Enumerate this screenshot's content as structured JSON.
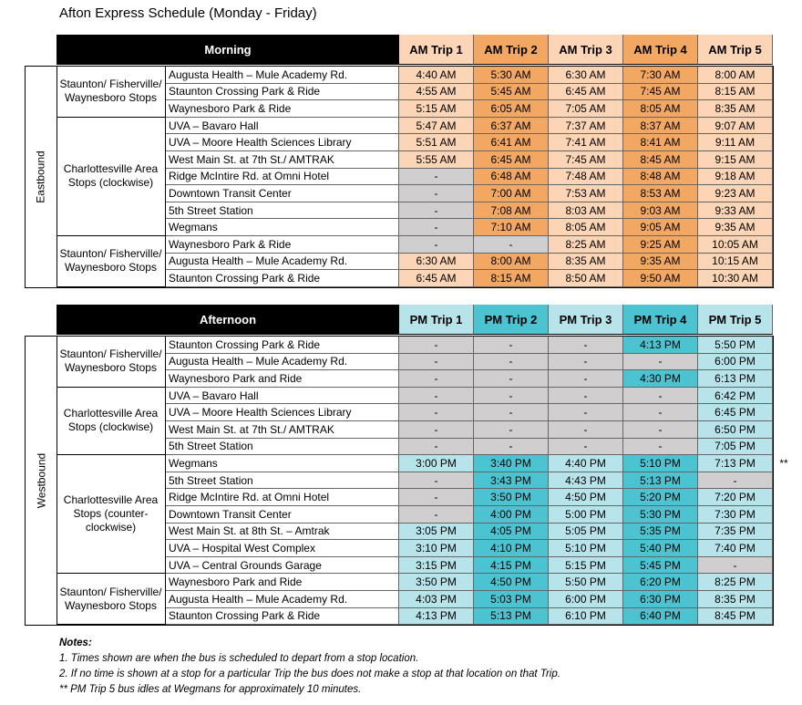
{
  "title": "Afton Express Schedule (Monday - Friday)",
  "sections": [
    {
      "header": "Morning",
      "direction": "Eastbound",
      "trips": [
        "AM Trip 1",
        "AM Trip 2",
        "AM Trip 3",
        "AM Trip 4",
        "AM Trip 5"
      ],
      "groups": [
        {
          "name": "Staunton/ Fisherville/ Waynesboro Stops",
          "stops": [
            {
              "stop": "Augusta Health – Mule Academy Rd.",
              "times": [
                "4:40 AM",
                "5:30 AM",
                "6:30 AM",
                "7:30 AM",
                "8:00 AM"
              ]
            },
            {
              "stop": "Staunton Crossing Park & Ride",
              "times": [
                "4:55 AM",
                "5:45 AM",
                "6:45 AM",
                "7:45 AM",
                "8:15 AM"
              ]
            },
            {
              "stop": "Waynesboro Park & Ride",
              "times": [
                "5:15 AM",
                "6:05 AM",
                "7:05 AM",
                "8:05 AM",
                "8:35 AM"
              ]
            }
          ]
        },
        {
          "name": "Charlottesville Area Stops (clockwise)",
          "stops": [
            {
              "stop": "UVA – Bavaro Hall",
              "times": [
                "5:47 AM",
                "6:37 AM",
                "7:37 AM",
                "8:37 AM",
                "9:07 AM"
              ]
            },
            {
              "stop": "UVA – Moore Health Sciences Library",
              "times": [
                "5:51 AM",
                "6:41 AM",
                "7:41 AM",
                "8:41 AM",
                "9:11 AM"
              ]
            },
            {
              "stop": "West Main St. at 7th St./ AMTRAK",
              "times": [
                "5:55 AM",
                "6:45 AM",
                "7:45 AM",
                "8:45 AM",
                "9:15 AM"
              ]
            },
            {
              "stop": "Ridge McIntire Rd. at Omni Hotel",
              "times": [
                "-",
                "6:48 AM",
                "7:48 AM",
                "8:48 AM",
                "9:18 AM"
              ]
            },
            {
              "stop": "Downtown Transit Center",
              "times": [
                "-",
                "7:00 AM",
                "7:53 AM",
                "8:53 AM",
                "9:23 AM"
              ]
            },
            {
              "stop": "5th Street Station",
              "times": [
                "-",
                "7:08 AM",
                "8:03 AM",
                "9:03 AM",
                "9:33 AM"
              ]
            },
            {
              "stop": "Wegmans",
              "times": [
                "-",
                "7:10 AM",
                "8:05 AM",
                "9:05 AM",
                "9:35 AM"
              ]
            }
          ]
        },
        {
          "name": "Staunton/ Fisherville/ Waynesboro Stops",
          "stops": [
            {
              "stop": "Waynesboro Park & Ride",
              "times": [
                "-",
                "-",
                "8:25 AM",
                "9:25 AM",
                "10:05 AM"
              ]
            },
            {
              "stop": "Augusta Health – Mule Academy Rd.",
              "times": [
                "6:30 AM",
                "8:00 AM",
                "8:35 AM",
                "9:35 AM",
                "10:15 AM"
              ]
            },
            {
              "stop": "Staunton Crossing Park & Ride",
              "times": [
                "6:45 AM",
                "8:15 AM",
                "8:50 AM",
                "9:50 AM",
                "10:30 AM"
              ]
            }
          ]
        }
      ]
    },
    {
      "header": "Afternoon",
      "direction": "Westbound",
      "trips": [
        "PM Trip 1",
        "PM Trip 2",
        "PM Trip 3",
        "PM Trip 4",
        "PM Trip 5"
      ],
      "groups": [
        {
          "name": "Staunton/ Fisherville/ Waynesboro Stops",
          "stops": [
            {
              "stop": "Staunton Crossing Park & Ride",
              "times": [
                "-",
                "-",
                "-",
                "4:13 PM",
                "5:50 PM"
              ]
            },
            {
              "stop": "Augusta Health – Mule Academy Rd.",
              "times": [
                "-",
                "-",
                "-",
                "-",
                "6:00 PM"
              ]
            },
            {
              "stop": "Waynesboro Park and Ride",
              "times": [
                "-",
                "-",
                "-",
                "4:30 PM",
                "6:13 PM"
              ]
            }
          ]
        },
        {
          "name": "Charlottesville Area Stops (clockwise)",
          "stops": [
            {
              "stop": "UVA – Bavaro Hall",
              "times": [
                "-",
                "-",
                "-",
                "-",
                "6:42 PM"
              ]
            },
            {
              "stop": "UVA – Moore Health Sciences Library",
              "times": [
                "-",
                "-",
                "-",
                "-",
                "6:45 PM"
              ]
            },
            {
              "stop": "West Main St. at 7th St./ AMTRAK",
              "times": [
                "-",
                "-",
                "-",
                "-",
                "6:50 PM"
              ]
            },
            {
              "stop": "5th Street Station",
              "times": [
                "-",
                "-",
                "-",
                "-",
                "7:05 PM"
              ]
            }
          ]
        },
        {
          "name": "Charlottesville Area Stops (counter-clockwise)",
          "stops": [
            {
              "stop": "Wegmans",
              "times": [
                "3:00 PM",
                "3:40 PM",
                "4:40 PM",
                "5:10 PM",
                "7:13 PM"
              ],
              "marker": "**"
            },
            {
              "stop": "5th Street Station",
              "times": [
                "-",
                "3:43 PM",
                "4:43 PM",
                "5:13 PM",
                "-"
              ]
            },
            {
              "stop": "Ridge McIntire Rd. at Omni Hotel",
              "times": [
                "-",
                "3:50 PM",
                "4:50 PM",
                "5:20 PM",
                "7:20 PM"
              ]
            },
            {
              "stop": "Downtown Transit Center",
              "times": [
                "-",
                "4:00 PM",
                "5:00 PM",
                "5:30 PM",
                "7:30 PM"
              ]
            },
            {
              "stop": "West Main St. at 8th St. – Amtrak",
              "times": [
                "3:05 PM",
                "4:05 PM",
                "5:05 PM",
                "5:35 PM",
                "7:35 PM"
              ]
            },
            {
              "stop": "UVA – Hospital West Complex",
              "times": [
                "3:10 PM",
                "4:10 PM",
                "5:10 PM",
                "5:40 PM",
                "7:40 PM"
              ]
            },
            {
              "stop": "UVA – Central Grounds Garage",
              "times": [
                "3:15 PM",
                "4:15 PM",
                "5:15 PM",
                "5:45 PM",
                "-"
              ]
            }
          ]
        },
        {
          "name": "Staunton/ Fisherville/ Waynesboro Stops",
          "stops": [
            {
              "stop": "Waynesboro Park and Ride",
              "times": [
                "3:50 PM",
                "4:50 PM",
                "5:50 PM",
                "6:20 PM",
                "8:25 PM"
              ]
            },
            {
              "stop": "Augusta Health – Mule Academy Rd.",
              "times": [
                "4:03 PM",
                "5:03 PM",
                "6:00 PM",
                "6:30 PM",
                "8:35 PM"
              ]
            },
            {
              "stop": "Staunton Crossing Park & Ride",
              "times": [
                "4:13 PM",
                "5:13 PM",
                "6:10 PM",
                "6:40 PM",
                "8:45 PM"
              ]
            }
          ]
        }
      ]
    }
  ],
  "notes": {
    "heading": "Notes:",
    "items": [
      "1. Times shown are when the bus is scheduled to depart from a stop location.",
      "2. If no time is shown at a stop for a particular Trip the bus does not make a stop at that location on that Trip.",
      "** PM Trip 5 bus idles at Wegmans for approximately 10 minutes."
    ]
  }
}
